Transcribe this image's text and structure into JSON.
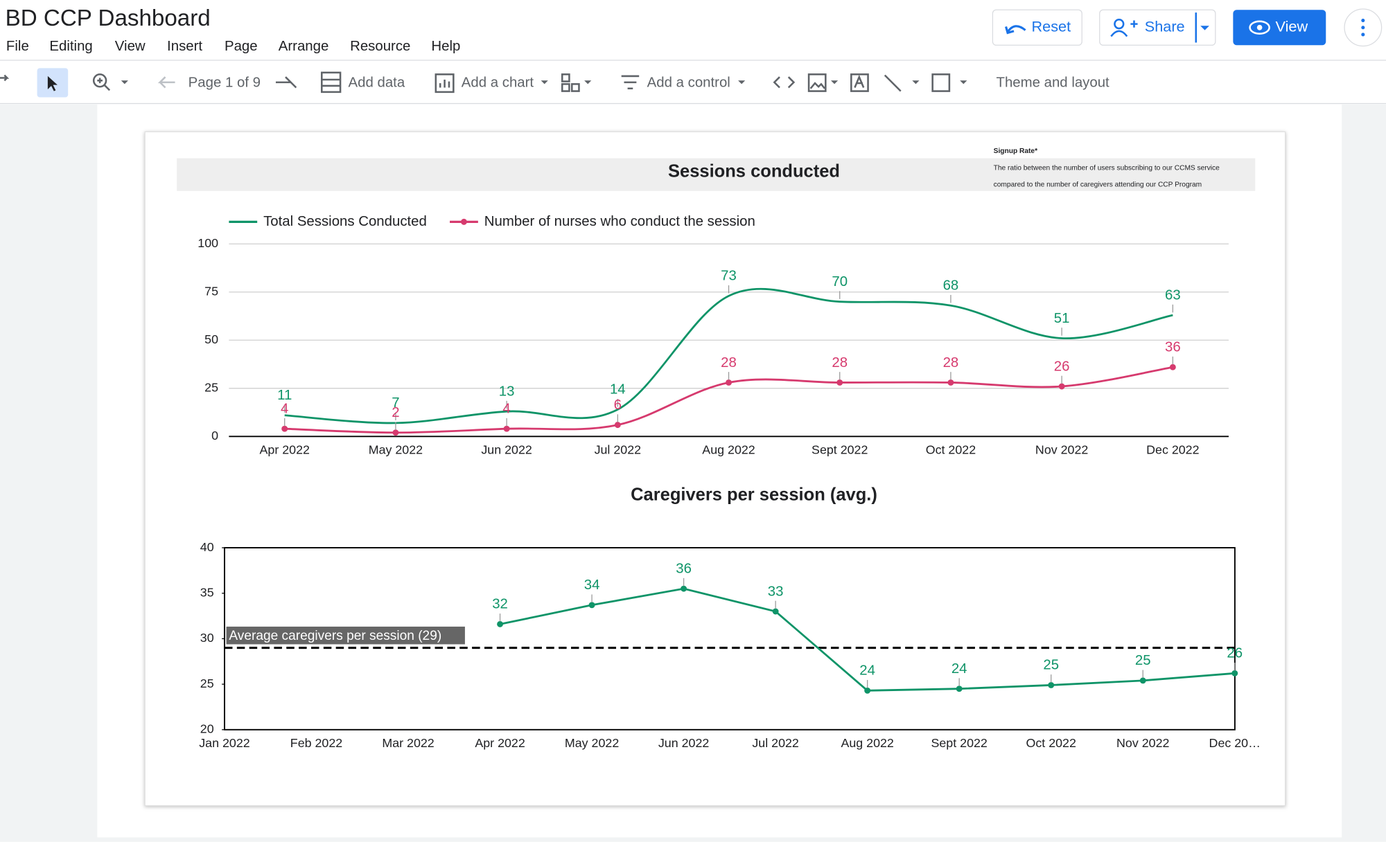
{
  "header": {
    "title": "BD CCP Dashboard",
    "menu": [
      "File",
      "Editing",
      "View",
      "Insert",
      "Page",
      "Arrange",
      "Resource",
      "Help"
    ],
    "buttons": {
      "reset": "Reset",
      "share": "Share",
      "view": "View"
    }
  },
  "toolbar": {
    "page": "Page 1 of 9",
    "add_data": "Add data",
    "add_chart": "Add a chart",
    "add_control": "Add a control",
    "theme": "Theme and layout"
  },
  "chart_data": [
    {
      "type": "line",
      "title": "Sessions conducted",
      "smooth": true,
      "annotation": {
        "title": "Signup Rate*",
        "lines": [
          "The ratio between the number of users subscribing to our CCMS service",
          "compared to the number of caregivers attending our CCP Program"
        ]
      },
      "categories": [
        "Apr 2022",
        "May 2022",
        "Jun 2022",
        "Jul 2022",
        "Aug 2022",
        "Sept 2022",
        "Oct 2022",
        "Nov 2022",
        "Dec 2022"
      ],
      "series": [
        {
          "name": "Total Sessions Conducted",
          "color": "#0f9468",
          "markers": false,
          "values": [
            11,
            7,
            13,
            14,
            73,
            70,
            68,
            51,
            63
          ]
        },
        {
          "name": "Number of nurses who conduct the session",
          "color": "#d63a6e",
          "markers": true,
          "values": [
            4,
            2,
            4,
            6,
            28,
            28,
            28,
            26,
            36
          ]
        }
      ],
      "ylim": [
        0,
        100
      ],
      "yticks": [
        0,
        25,
        50,
        75,
        100
      ],
      "grid": true,
      "legend": "top-left"
    },
    {
      "type": "line",
      "title": "Caregivers per session (avg.)",
      "smooth": false,
      "categories": [
        "Jan 2022",
        "Feb 2022",
        "Mar 2022",
        "Apr 2022",
        "May 2022",
        "Jun 2022",
        "Jul 2022",
        "Aug 2022",
        "Sept 2022",
        "Oct 2022",
        "Nov 2022",
        "Dec 20…"
      ],
      "series": [
        {
          "color": "#0f9468",
          "markers": true,
          "values": [
            null,
            null,
            null,
            31.6,
            33.7,
            35.5,
            33,
            24.3,
            24.5,
            24.9,
            25.4,
            26.2
          ],
          "value_labels": [
            null,
            null,
            null,
            "32",
            "34",
            "36",
            "33",
            "24",
            "24",
            "25",
            "25",
            "26"
          ]
        }
      ],
      "reference_line": {
        "value": 29,
        "label": "Average caregivers per session (29)"
      },
      "ylim": [
        20,
        40
      ],
      "yticks": [
        20,
        25,
        30,
        35,
        40
      ],
      "grid": false
    }
  ]
}
